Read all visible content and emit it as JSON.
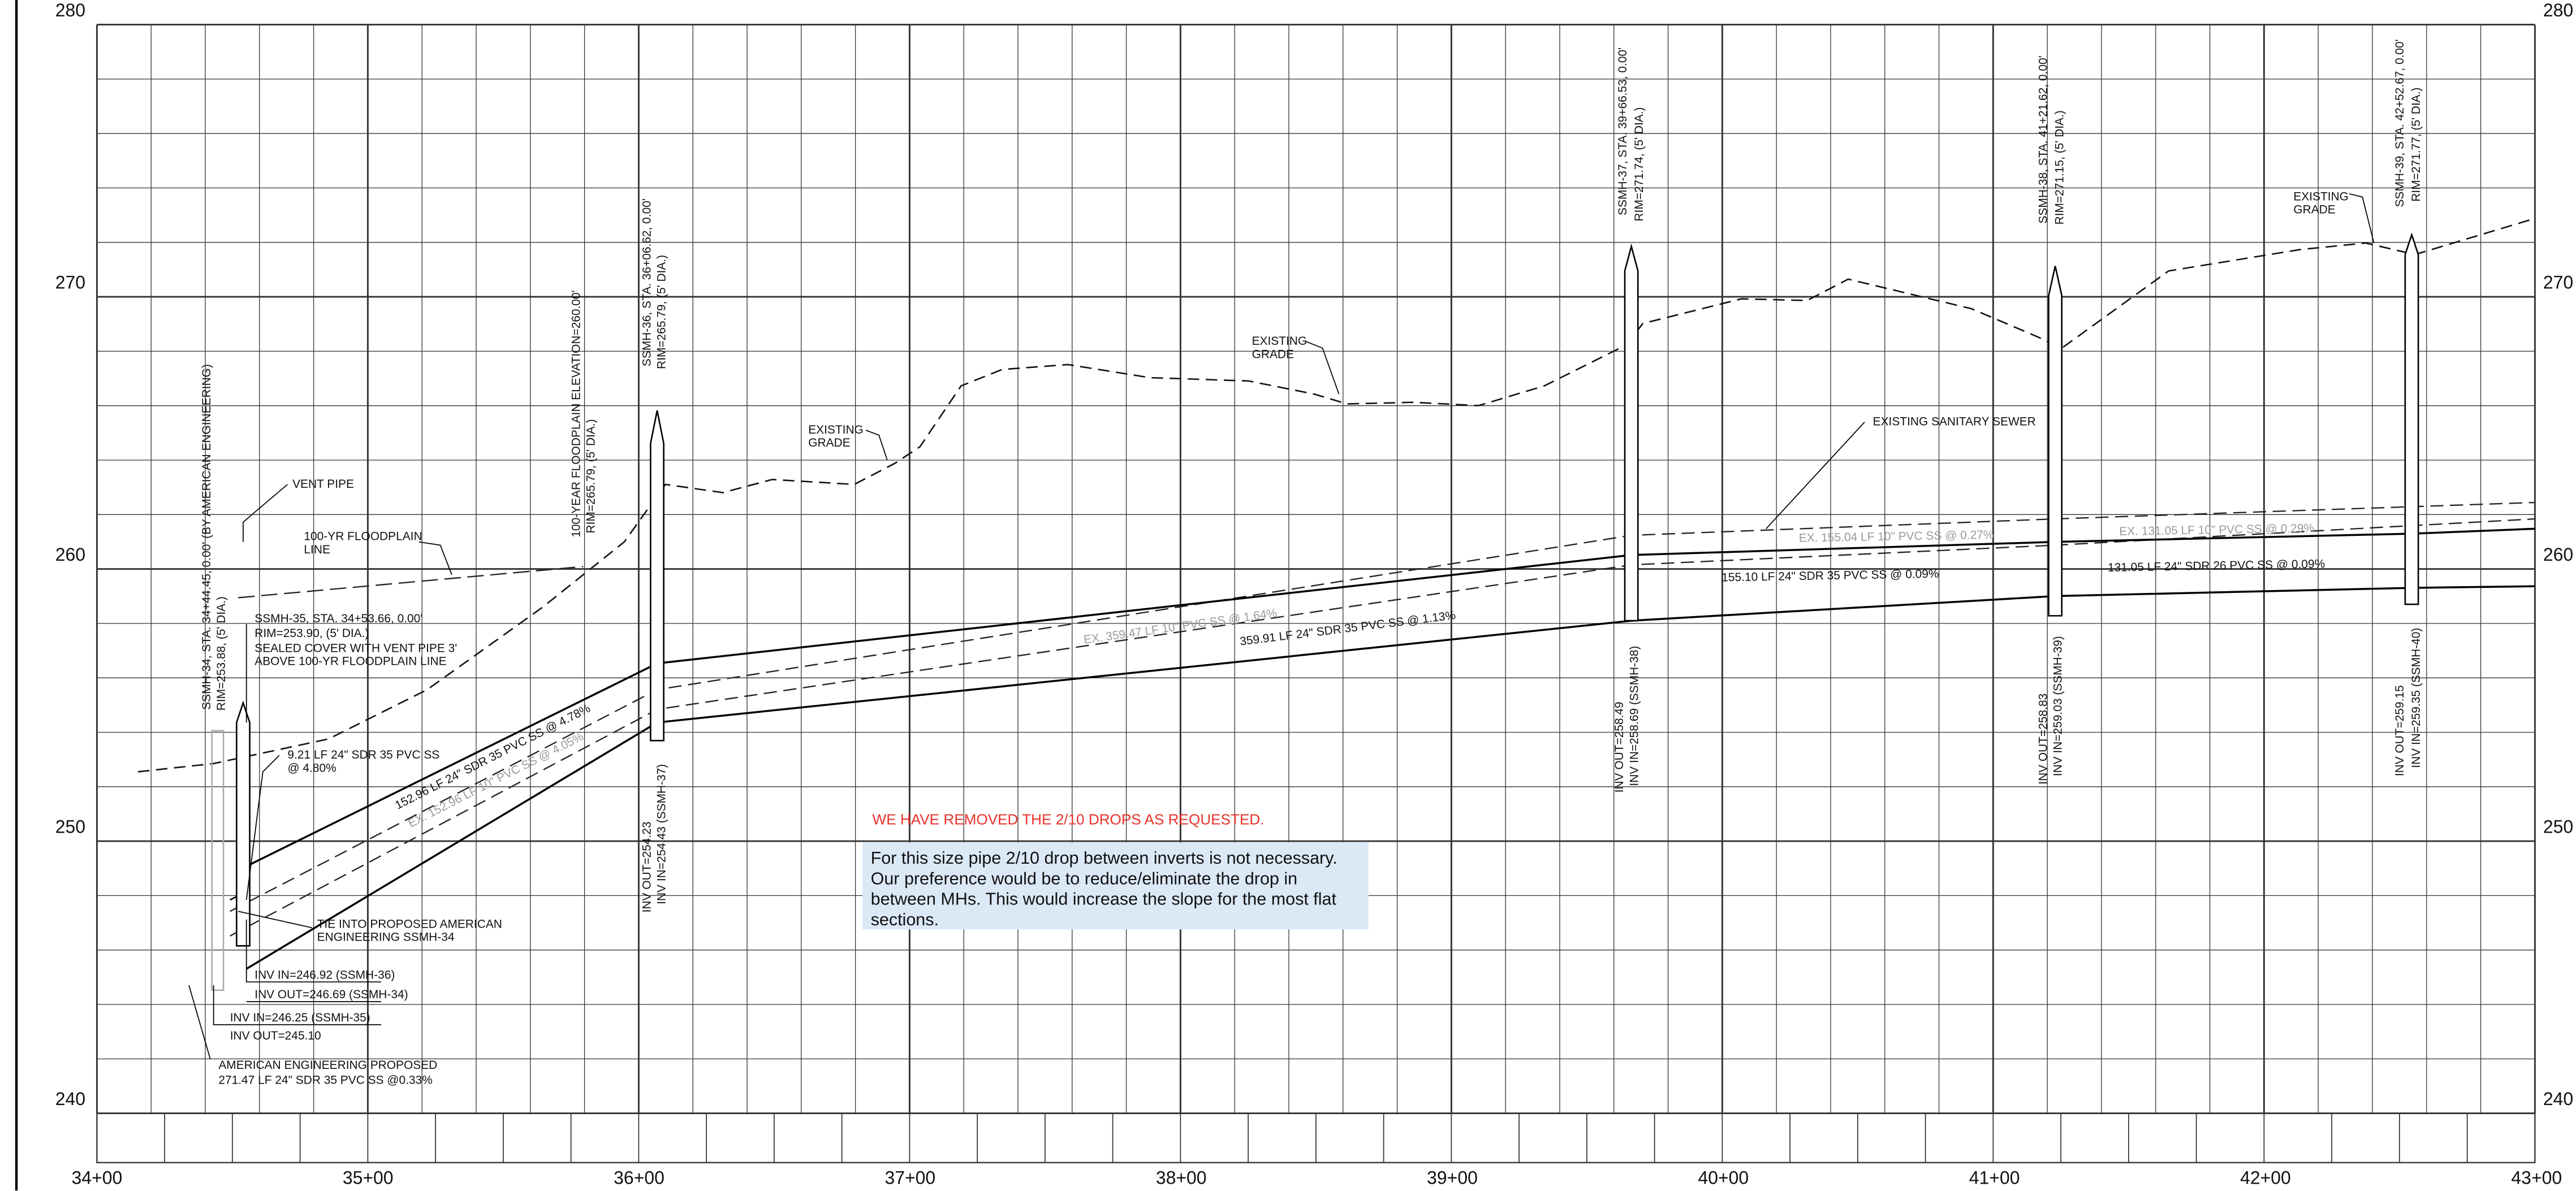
{
  "elevation_axis": {
    "left_labels": [
      "280",
      "270",
      "260",
      "250",
      "240"
    ],
    "right_labels": [
      "280",
      "270",
      "260",
      "250",
      "240"
    ]
  },
  "station_axis": {
    "labels": [
      "34+00",
      "35+00",
      "36+00",
      "37+00",
      "38+00",
      "39+00",
      "40+00",
      "41+00",
      "42+00",
      "43+00"
    ]
  },
  "annotations": [
    "SSMH-34, STA. 34+44.45, 0.00' (BY AMERICAN ENGINEERING)",
    "RIM=253.88, (5' DIA.)",
    "100-YEAR FLOODPLAIN ELEVATION=260.00'",
    "RIM=265.79, (5' DIA.)",
    "SSMH-36, STA. 36+06.62, 0.00'",
    "RIM=265.79, (5' DIA.)",
    "INV OUT=254.23",
    "INV IN=254.43 (SSMH-37)",
    "SSMH-37, STA. 39+66.53, 0.00'",
    "RIM=271.74, (5' DIA.)",
    "INV OUT=258.49",
    "INV IN=258.69 (SSMH-38)",
    "SSMH-38, STA. 41+21.62, 0.00'",
    "RIM=271.15, (5' DIA.)",
    "INV OUT=258.83",
    "INV IN=259.03 (SSMH-39)",
    "SSMH-39, STA. 42+52.67, 0.00'",
    "RIM=271.77, (5' DIA.)",
    "INV OUT=259.15",
    "INV IN=259.35 (SSMH-40)",
    "VENT PIPE",
    "100-YR FLOODPLAIN",
    "LINE",
    "SSMH-35, STA. 34+53.66, 0.00'",
    "RIM=253.90, (5' DIA.)",
    "SEALED COVER WITH VENT PIPE 3'",
    "ABOVE 100-YR FLOODPLAIN LINE",
    "9.21 LF 24\" SDR 35 PVC SS",
    "@ 4.80%",
    "TIE INTO PROPOSED AMERICAN",
    "ENGINEERING SSMH-34",
    "INV IN=246.92 (SSMH-36)",
    "INV OUT=246.69 (SSMH-34)",
    "INV IN=246.25 (SSMH-35)",
    "INV OUT=245.10",
    "AMERICAN ENGINEERING PROPOSED",
    "271.47 LF 24\" SDR 35 PVC SS @0.33%",
    "152.96 LF 24\" SDR 35 PVC SS @ 4.78%",
    "EXISTING",
    "GRADE",
    "EXISTING",
    "GRADE",
    "EXISTING",
    "GRADE",
    "EXISTING SANITARY SEWER",
    "359.91 LF 24\" SDR 35 PVC SS @ 1.13%",
    "155.10 LF 24\" SDR 35 PVC SS @ 0.09%",
    "131.05 LF 24\" SDR 26 PVC SS @ 0.09%"
  ],
  "existing_pipe_labels": [
    "EX. 152.96 LF 10\" PVC SS @ 4.05%",
    "EX. 359.47 LF 10\" PVC SS @ 1.64%",
    "EX. 155.04 LF 10\" PVC SS @ 0.27%",
    "EX. 131.05 LF 10\" PVC SS @ 0.29%"
  ],
  "notice": "WE HAVE REMOVED THE 2/10 DROPS AS REQUESTED.",
  "comment": {
    "lines": [
      "For this size pipe 2/10 drop between inverts is not necessary.",
      "Our preference would be to reduce/eliminate the drop in",
      "between MHs. This would increase the slope for the most flat",
      "sections."
    ]
  }
}
